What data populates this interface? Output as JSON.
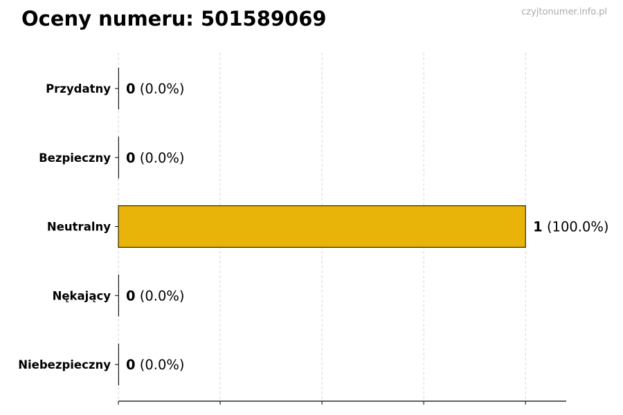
{
  "chart_data": {
    "type": "bar",
    "orientation": "horizontal",
    "title": "Oceny numeru: 501589069",
    "watermark": "czyjtonumer.info.pl",
    "categories": [
      "Przydatny",
      "Bezpieczny",
      "Neutralny",
      "Nękający",
      "Niebezpieczny"
    ],
    "values": [
      0,
      0,
      1,
      0,
      0
    ],
    "data_labels": [
      {
        "count": "0",
        "pct": "(0.0%)"
      },
      {
        "count": "0",
        "pct": "(0.0%)"
      },
      {
        "count": "1",
        "pct": "(100.0%)"
      },
      {
        "count": "0",
        "pct": "(0.0%)"
      },
      {
        "count": "0",
        "pct": "(0.0%)"
      }
    ],
    "xlim": [
      0,
      1.1
    ],
    "x_ticks": [
      0,
      0.25,
      0.5,
      0.75,
      1.0
    ],
    "x_tick_labels_shown": false,
    "grid": "vertical dashed",
    "bar_color": "#E8B40A",
    "xlabel": "",
    "ylabel": ""
  }
}
